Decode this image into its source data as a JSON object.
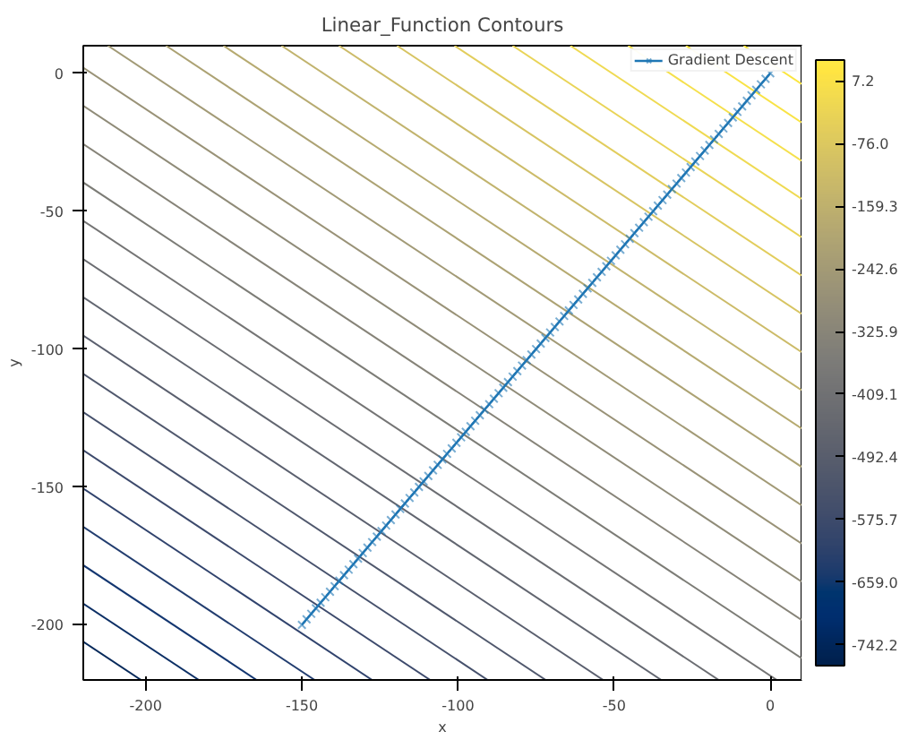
{
  "chart_data": {
    "type": "line",
    "title": "Linear_Function Contours",
    "xlabel": "x",
    "ylabel": "y",
    "xlim": [
      -220,
      10
    ],
    "ylim": [
      -220,
      10
    ],
    "xticks": [
      -200,
      -150,
      -100,
      -50,
      0
    ],
    "yticks": [
      -200,
      -150,
      -100,
      -50,
      0
    ],
    "grid": false,
    "legend": "top right",
    "clim": [
      -770,
      35
    ],
    "cticks": [
      7.2,
      {
        "value": -76,
        "label": "-76.0"
      },
      -159.3,
      -242.6,
      -325.9,
      -409.1,
      -492.4,
      -575.7,
      {
        "value": -659,
        "label": "-659.0"
      },
      -742.2
    ],
    "series": [
      {
        "color": "#06295a",
        "x": [
          -220,
          -201.5
        ],
        "values": [
          -206.1,
          -220
        ]
      },
      {
        "color": "#0c2f65",
        "x": [
          -220,
          -183.0
        ],
        "values": [
          -192.3,
          -220
        ]
      },
      {
        "color": "#133670",
        "x": [
          -220,
          -164.5
        ],
        "values": [
          -178.4,
          -220
        ]
      },
      {
        "color": "#223d6f",
        "x": [
          -220,
          -145.9
        ],
        "values": [
          -164.5,
          -220
        ]
      },
      {
        "color": "#30436d",
        "x": [
          -220,
          -127.5
        ],
        "values": [
          -150.6,
          -220
        ]
      },
      {
        "color": "#3d4a6c",
        "x": [
          -220,
          -108.9
        ],
        "values": [
          -136.7,
          -220
        ]
      },
      {
        "color": "#46516c",
        "x": [
          -220,
          -90.5
        ],
        "values": [
          -122.9,
          -220
        ]
      },
      {
        "color": "#50586d",
        "x": [
          -220,
          -71.9
        ],
        "values": [
          -109.0,
          -220
        ]
      },
      {
        "color": "#5a5f6e",
        "x": [
          -220,
          -53.5
        ],
        "values": [
          -95.1,
          -220
        ]
      },
      {
        "color": "#626670",
        "x": [
          -220,
          -34.9
        ],
        "values": [
          -81.2,
          -220
        ]
      },
      {
        "color": "#6b6d72",
        "x": [
          -220,
          -16.5
        ],
        "values": [
          -67.4,
          -220
        ]
      },
      {
        "color": "#747474",
        "x": [
          -220,
          2.1
        ],
        "values": [
          -53.5,
          -220
        ]
      },
      {
        "color": "#7c7c76",
        "x": [
          -220,
          10
        ],
        "values": [
          -39.6,
          -212.1
        ]
      },
      {
        "color": "#868378",
        "x": [
          -220,
          10
        ],
        "values": [
          -25.7,
          -198.2
        ]
      },
      {
        "color": "#8f8b78",
        "x": [
          -220,
          10
        ],
        "values": [
          -11.8,
          -184.3
        ]
      },
      {
        "color": "#999277",
        "x": [
          -220,
          10
        ],
        "values": [
          2.0,
          -170.5
        ]
      },
      {
        "color": "#a29a76",
        "x": [
          -212.1,
          10
        ],
        "values": [
          10,
          -156.6
        ]
      },
      {
        "color": "#aca273",
        "x": [
          -193.5,
          10
        ],
        "values": [
          10,
          -142.7
        ]
      },
      {
        "color": "#b6aa70",
        "x": [
          -175.1,
          10
        ],
        "values": [
          10,
          -128.8
        ]
      },
      {
        "color": "#c1b36d",
        "x": [
          -156.5,
          10
        ],
        "values": [
          10,
          -114.9
        ]
      },
      {
        "color": "#ccbb68",
        "x": [
          -138.1,
          10
        ],
        "values": [
          10,
          -101.1
        ]
      },
      {
        "color": "#d7c462",
        "x": [
          -119.5,
          10
        ],
        "values": [
          10,
          -87.2
        ]
      },
      {
        "color": "#e2cd5c",
        "x": [
          -101.1,
          10
        ],
        "values": [
          10,
          -73.3
        ]
      },
      {
        "color": "#e9d457",
        "x": [
          -82.5,
          10
        ],
        "values": [
          10,
          -59.4
        ]
      },
      {
        "color": "#efda52",
        "x": [
          -64.0,
          10
        ],
        "values": [
          10,
          -45.5
        ]
      },
      {
        "color": "#f5e04c",
        "x": [
          -45.5,
          10
        ],
        "values": [
          10,
          -31.7
        ]
      },
      {
        "color": "#f9e345",
        "x": [
          -27.0,
          10
        ],
        "values": [
          10,
          -17.8
        ]
      },
      {
        "color": "#fbe63f",
        "x": [
          -8.5,
          10
        ],
        "values": [
          10,
          -3.9
        ]
      },
      {
        "name": "Gradient Descent",
        "color": "#1f77b4",
        "marker": "cross",
        "x": [
          0,
          -1.5,
          -3,
          -4.5,
          -6,
          -7.5,
          -9,
          -10.5,
          -12,
          -13.5,
          -15,
          -16.5,
          -18,
          -19.5,
          -21,
          -22.5,
          -24,
          -25.5,
          -27,
          -28.5,
          -30,
          -31.5,
          -33,
          -34.5,
          -36,
          -37.5,
          -39,
          -40.5,
          -42,
          -43.5,
          -45,
          -46.5,
          -48,
          -49.5,
          -51,
          -52.5,
          -54,
          -55.5,
          -57,
          -58.5,
          -60,
          -61.5,
          -63,
          -64.5,
          -66,
          -67.5,
          -69,
          -70.5,
          -72,
          -73.5,
          -75,
          -76.5,
          -78,
          -79.5,
          -81,
          -82.5,
          -84,
          -85.5,
          -87,
          -88.5,
          -90,
          -91.5,
          -93,
          -94.5,
          -96,
          -97.5,
          -99,
          -100.5,
          -102,
          -103.5,
          -105,
          -106.5,
          -108,
          -109.5,
          -111,
          -112.5,
          -114,
          -115.5,
          -117,
          -118.5,
          -120,
          -121.5,
          -123,
          -124.5,
          -126,
          -127.5,
          -129,
          -130.5,
          -132,
          -133.5,
          -135,
          -136.5,
          -138,
          -139.5,
          -141,
          -142.5,
          -144,
          -145.5,
          -147,
          -148.5,
          -150
        ],
        "values": [
          0,
          -2,
          -4,
          -6,
          -8,
          -10,
          -12,
          -14,
          -16,
          -18,
          -20,
          -22,
          -24,
          -26,
          -28,
          -30,
          -32,
          -34,
          -36,
          -38,
          -40,
          -42,
          -44,
          -46,
          -48,
          -50,
          -52,
          -54,
          -56,
          -58,
          -60,
          -62,
          -64,
          -66,
          -68,
          -70,
          -72,
          -74,
          -76,
          -78,
          -80,
          -82,
          -84,
          -86,
          -88,
          -90,
          -92,
          -94,
          -96,
          -98,
          -100,
          -102,
          -104,
          -106,
          -108,
          -110,
          -112,
          -114,
          -116,
          -118,
          -120,
          -122,
          -124,
          -126,
          -128,
          -130,
          -132,
          -134,
          -136,
          -138,
          -140,
          -142,
          -144,
          -146,
          -148,
          -150,
          -152,
          -154,
          -156,
          -158,
          -160,
          -162,
          -164,
          -166,
          -168,
          -170,
          -172,
          -174,
          -176,
          -178,
          -180,
          -182,
          -184,
          -186,
          -188,
          -190,
          -192,
          -194,
          -196,
          -198,
          -200
        ]
      }
    ]
  }
}
